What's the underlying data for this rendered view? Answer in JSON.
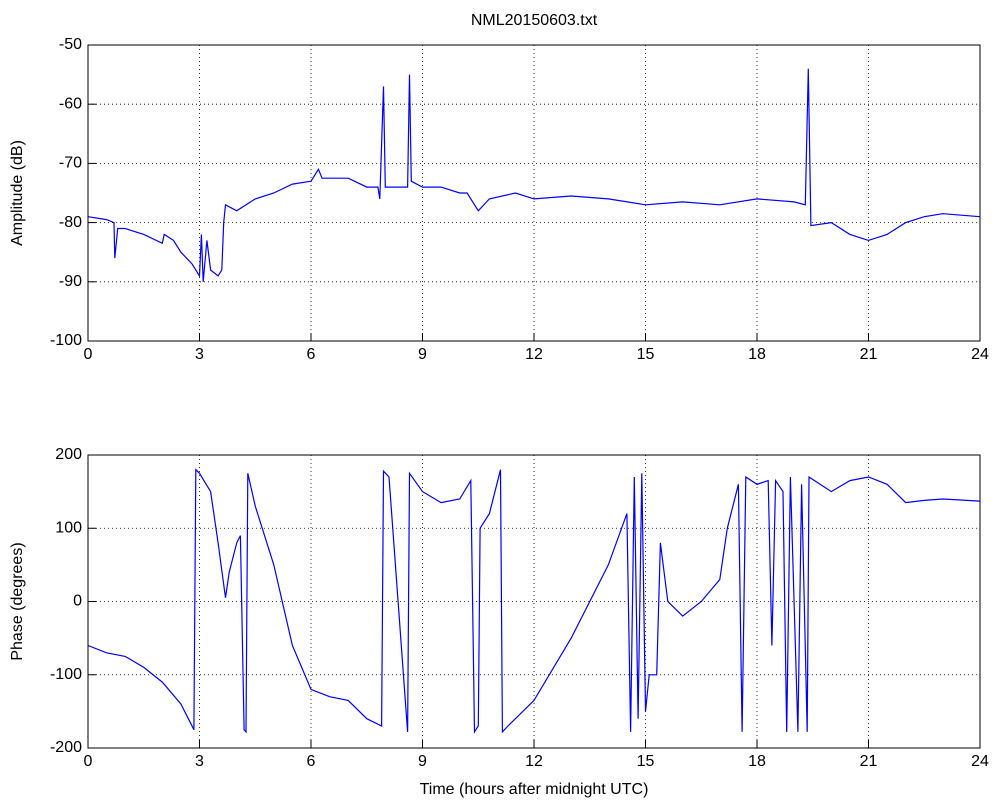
{
  "chart_data": [
    {
      "type": "line",
      "title": "NML20150603.txt",
      "ylabel": "Amplitude (dB)",
      "x": [
        0,
        0.5,
        0.7,
        0.72,
        0.8,
        1.0,
        1.5,
        2.0,
        2.05,
        2.3,
        2.5,
        2.8,
        3.0,
        3.05,
        3.1,
        3.2,
        3.3,
        3.5,
        3.6,
        3.65,
        3.7,
        4.0,
        4.5,
        5.0,
        5.5,
        6.0,
        6.2,
        6.3,
        7.0,
        7.5,
        7.8,
        7.85,
        7.95,
        8.0,
        8.3,
        8.6,
        8.65,
        8.7,
        9.0,
        9.5,
        10.0,
        10.2,
        10.5,
        10.8,
        11.5,
        12,
        13,
        14,
        15,
        16,
        17,
        18,
        19,
        19.3,
        19.38,
        19.45,
        20,
        20.5,
        21,
        21.5,
        22,
        22.5,
        23,
        24
      ],
      "series": [
        {
          "color": "#0000ff",
          "values": [
            -79,
            -79.5,
            -80,
            -86,
            -81,
            -81,
            -82,
            -83.5,
            -82,
            -83,
            -85,
            -87,
            -89,
            -82,
            -90,
            -83,
            -88,
            -89,
            -88,
            -80,
            -77,
            -78,
            -76,
            -75,
            -73.5,
            -73,
            -71,
            -72.5,
            -72.5,
            -74,
            -74,
            -76,
            -57,
            -74,
            -74,
            -74,
            -55,
            -73,
            -74,
            -74,
            -75,
            -75,
            -78,
            -76,
            -75,
            -76,
            -75.5,
            -76,
            -77,
            -76.5,
            -77,
            -76,
            -76.5,
            -77,
            -54,
            -80.5,
            -80,
            -82,
            -83,
            -82,
            -80,
            -79,
            -78.5,
            -79
          ]
        }
      ],
      "xlim": [
        0,
        24
      ],
      "xticks": [
        0,
        3,
        6,
        9,
        12,
        15,
        18,
        21,
        24
      ],
      "ylim": [
        -100,
        -50
      ],
      "yticks": [
        -100,
        -90,
        -80,
        -70,
        -60,
        -50
      ],
      "grid": true
    },
    {
      "type": "line",
      "xlabel": "Time (hours after midnight UTC)",
      "ylabel": "Phase (degrees)",
      "x": [
        0,
        0.5,
        1.0,
        1.5,
        2.0,
        2.5,
        2.85,
        2.9,
        3.0,
        3.3,
        3.5,
        3.7,
        3.8,
        4.0,
        4.1,
        4.2,
        4.25,
        4.3,
        4.5,
        5.0,
        5.5,
        6.0,
        6.5,
        7.0,
        7.5,
        7.9,
        7.95,
        8.1,
        8.6,
        8.65,
        9.0,
        9.5,
        10.0,
        10.3,
        10.4,
        10.5,
        10.55,
        10.8,
        11.1,
        11.15,
        11.3,
        12.0,
        13.0,
        14.0,
        14.5,
        14.6,
        14.7,
        14.8,
        14.9,
        15.0,
        15.1,
        15.3,
        15.4,
        15.6,
        16.0,
        16.5,
        17.0,
        17.2,
        17.5,
        17.6,
        17.7,
        18.0,
        18.3,
        18.4,
        18.5,
        18.7,
        18.8,
        18.9,
        19.1,
        19.2,
        19.35,
        19.4,
        20,
        20.5,
        21,
        21.5,
        22,
        22.5,
        23,
        24
      ],
      "series": [
        {
          "color": "#0000ff",
          "values": [
            -60,
            -70,
            -75,
            -90,
            -110,
            -140,
            -175,
            180,
            175,
            150,
            80,
            5,
            40,
            80,
            90,
            -175,
            -178,
            175,
            130,
            50,
            -60,
            -120,
            -130,
            -135,
            -160,
            -170,
            178,
            170,
            -178,
            175,
            150,
            135,
            140,
            165,
            -178,
            -170,
            100,
            120,
            180,
            -178,
            -170,
            -135,
            -50,
            50,
            120,
            -178,
            170,
            -160,
            175,
            -150,
            -100,
            -100,
            80,
            0,
            -20,
            0,
            30,
            100,
            160,
            -178,
            170,
            160,
            165,
            -60,
            165,
            150,
            -178,
            170,
            -178,
            160,
            -178,
            170,
            150,
            165,
            170,
            160,
            135,
            138,
            140,
            137
          ]
        }
      ],
      "xlim": [
        0,
        24
      ],
      "xticks": [
        0,
        3,
        6,
        9,
        12,
        15,
        18,
        21,
        24
      ],
      "ylim": [
        -200,
        200
      ],
      "yticks": [
        -200,
        -100,
        0,
        100,
        200
      ],
      "grid": true
    }
  ]
}
